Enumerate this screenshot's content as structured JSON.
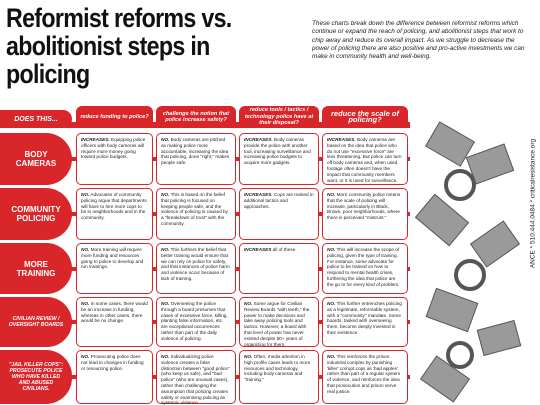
{
  "title": "Reformist reforms vs. abolitionist steps in policing",
  "intro": "These charts break down the difference between reformist reforms which continue or expand the reach of policing, and abolitionist steps that work to chip away and reduce its overall impact. As we struggle to decrease the power of policing there are also positive and pro-active investments we can make in community health and well-being.",
  "table": {
    "corner": "DOES THIS...",
    "columns": [
      "reduce funding to police?",
      "challenge the notion that police increase safety?",
      "reduce tools / tactics / technology police have at their disposal?",
      "reduce the scale of policing?"
    ],
    "rows": [
      {
        "label": "BODY CAMERAS",
        "cells": [
          {
            "lead": "INCREASES.",
            "text": "Equipping police officers with body cameras will require more money going toward police budgets."
          },
          {
            "lead": "NO.",
            "text": "Body cameras are pitched as making police more accountable, increasing the idea that policing, done \"right,\" makes people safe."
          },
          {
            "lead": "INCREASES.",
            "text": "Body cameras provide the police with another tool, increasing surveillance and increasing police budgets to acquire more gadgets."
          },
          {
            "lead": "INCREASES.",
            "text": "Body cameras are based on the idea that police who do not use \"excessive force\" are less threatening. But police can turn off body cameras and, when used, footage often doesn't have the impact that community members want, or it is used for surveillance."
          }
        ]
      },
      {
        "label": "COMMUNITY POLICING",
        "cells": [
          {
            "lead": "NO.",
            "text": "Advocates of community policing argue that departments will have to hire more cops to be in neighborhoods and in the community."
          },
          {
            "lead": "NO.",
            "text": "This is based on the belief that policing is focused on keeping people safe, and the violence of policing is caused by a \"breakdown of trust\" with the community."
          },
          {
            "lead": "INCREASES.",
            "text": "Cops are trained in additional tactics and approaches."
          },
          {
            "lead": "NO.",
            "text": "More community police means that the scale of policing will increase, particularly in Black, Brown, poor neighborhoods, where there is perceived \"mistrust.\""
          }
        ]
      },
      {
        "label": "MORE TRAINING",
        "cells": [
          {
            "lead": "NO.",
            "text": "More training will require more funding and resources going to police to develop and run trainings."
          },
          {
            "lead": "NO.",
            "text": "This furthers the belief that better training would ensure that we can rely on police for safety, and that instances of police harm and violence occur because of lack of training."
          },
          {
            "lead": "INCREASES",
            "text": "all of these."
          },
          {
            "lead": "NO.",
            "text": "This will increase the scope of policing, given the type of training. For instance, some advocate for police to be trained on how to respond to mental health crises, furthering the idea that police are the go to for every kind of problem."
          }
        ]
      },
      {
        "label": "CIVILIAN REVIEW / OVERSIGHT BOARDS",
        "cells": [
          {
            "lead": "NO.",
            "text": "In some cases, there would be an increase in funding, whereas in other cases, there would be no change."
          },
          {
            "lead": "NO.",
            "text": "Overseeing the police through a board presumes that cases of excessive force, killing, planting false information, etc. are exceptional occurrences rather than part of the daily violence of policing."
          },
          {
            "lead": "NO.",
            "text": "Some argue for Civilian Review Boards \"with teeth,\" the power to make decisions and take away policing tools and tactics. However, a board with that level of power has never existed despite 50+ years of organizing for them."
          },
          {
            "lead": "NO.",
            "text": "This further entrenches policing as a legitimate, reformable system, with a \"community\" mandate. Some boards, tasked with overseeing them, become deeply invested in their existence."
          }
        ]
      },
      {
        "label": "\"JAIL KILLER COPS\": PROSECUTE POLICE WHO HAVE KILLED AND ABUSED CIVILIANS.",
        "cells": [
          {
            "lead": "NO.",
            "text": "Prosecuting police does not lead to changes in funding or resourcing police."
          },
          {
            "lead": "NO.",
            "text": "Individualizing police violence creates a false distinction between \"good police\" (who keep us safe), and \"bad police\" (who are unusual cases), rather than challenging the assumption that policing creates safety or examining policing as systemic violence."
          },
          {
            "lead": "NO.",
            "text": "Often, media attention in high profile cases leads to more resources and technology, including body cameras and \"training.\""
          },
          {
            "lead": "NO.",
            "text": "This reinforces the prison industrial complex by punishing 'killer' corrupt cops as 'bad apples' rather than part of a regular system of violence, and reinforces the idea that prosecution and prison serve real justice."
          }
        ]
      }
    ]
  },
  "side_text": "ANCE * 510.444.0484 * criticalresistance.org"
}
